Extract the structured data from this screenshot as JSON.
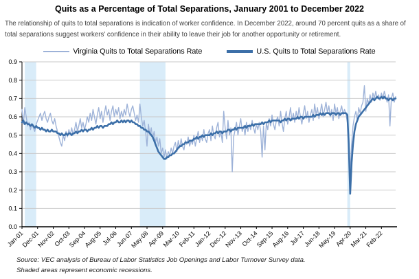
{
  "title": "Quits as a Percentage of Total Separations, January 2001 to December 2022",
  "subtitle": "The relationship of quits to total separations is indication of worker confidence. In December 2022, around 70 percent quits as a share of total separations suggest workers' confidence in their ability to leave their job for another opportunity or retirement.",
  "footer": {
    "source": "Source: VEC analysis of Bureau of Labor Statistics Job Openings and Labor Turnover Survey data.",
    "note": "Shaded areas represent economic recessions."
  },
  "chart_data": {
    "type": "line",
    "x_start": "Jan-2001",
    "x_end": "Dec-2022",
    "x_frequency": "monthly",
    "x_tick_interval": 11,
    "x_tick_labels": [
      "Jan-01",
      "Dec-01",
      "Nov-02",
      "Oct-03",
      "Sep-04",
      "Aug-05",
      "Jul-06",
      "Jun-07",
      "May-08",
      "Apr-09",
      "Mar-10",
      "Feb-11",
      "Jan-12",
      "Dec-12",
      "Nov-13",
      "Oct-14",
      "Sep-15",
      "Aug-16",
      "Jul-17",
      "Jun-18",
      "May-19",
      "Apr-20",
      "Mar-21",
      "Feb-22"
    ],
    "ylim": [
      0.0,
      0.9
    ],
    "yticks": [
      0.0,
      0.1,
      0.2,
      0.3,
      0.4,
      0.5,
      0.6,
      0.7,
      0.8,
      0.9
    ],
    "grid": "horizontal",
    "legend_position": "top",
    "colors": {
      "band": "#D9ECF9",
      "grid": "#C9C9C9",
      "axis": "#000000"
    },
    "recession_bands": [
      {
        "label": "2001 recession",
        "start_month": "Mar-01",
        "end_month": "Nov-01",
        "start_index": 2,
        "end_index": 10
      },
      {
        "label": "2008-09 recession",
        "start_month": "Dec-07",
        "end_month": "Jun-09",
        "start_index": 83,
        "end_index": 101
      },
      {
        "label": "COVID-19 recession",
        "start_month": "Feb-20",
        "end_month": "Apr-20",
        "start_index": 229,
        "end_index": 231
      }
    ],
    "series": [
      {
        "name": "Virginia Quits to Total Separations Rate",
        "color": "#9DB2D8",
        "stroke_width": 1.4,
        "values": [
          0.64,
          0.56,
          0.65,
          0.6,
          0.55,
          0.57,
          0.53,
          0.56,
          0.54,
          0.52,
          0.56,
          0.58,
          0.6,
          0.62,
          0.58,
          0.61,
          0.63,
          0.59,
          0.57,
          0.6,
          0.62,
          0.58,
          0.56,
          0.59,
          0.55,
          0.52,
          0.49,
          0.46,
          0.44,
          0.5,
          0.47,
          0.52,
          0.49,
          0.53,
          0.5,
          0.54,
          0.5,
          0.53,
          0.57,
          0.52,
          0.55,
          0.59,
          0.54,
          0.57,
          0.53,
          0.56,
          0.6,
          0.57,
          0.62,
          0.58,
          0.64,
          0.6,
          0.56,
          0.61,
          0.65,
          0.59,
          0.63,
          0.57,
          0.62,
          0.66,
          0.61,
          0.64,
          0.58,
          0.63,
          0.66,
          0.6,
          0.64,
          0.61,
          0.65,
          0.59,
          0.63,
          0.6,
          0.64,
          0.61,
          0.67,
          0.63,
          0.6,
          0.64,
          0.66,
          0.62,
          0.58,
          0.61,
          0.57,
          0.67,
          0.6,
          0.55,
          0.58,
          0.52,
          0.44,
          0.56,
          0.5,
          0.54,
          0.48,
          0.52,
          0.46,
          0.49,
          0.44,
          0.48,
          0.4,
          0.43,
          0.38,
          0.42,
          0.37,
          0.41,
          0.39,
          0.43,
          0.4,
          0.44,
          0.46,
          0.41,
          0.47,
          0.43,
          0.48,
          0.44,
          0.42,
          0.47,
          0.45,
          0.49,
          0.44,
          0.47,
          0.45,
          0.5,
          0.44,
          0.48,
          0.52,
          0.46,
          0.5,
          0.47,
          0.53,
          0.48,
          0.46,
          0.51,
          0.53,
          0.47,
          0.55,
          0.5,
          0.48,
          0.54,
          0.57,
          0.49,
          0.52,
          0.46,
          0.63,
          0.54,
          0.48,
          0.58,
          0.5,
          0.54,
          0.3,
          0.49,
          0.53,
          0.57,
          0.5,
          0.55,
          0.59,
          0.52,
          0.55,
          0.5,
          0.57,
          0.52,
          0.56,
          0.53,
          0.58,
          0.54,
          0.51,
          0.56,
          0.53,
          0.57,
          0.52,
          0.38,
          0.55,
          0.42,
          0.57,
          0.53,
          0.59,
          0.55,
          0.61,
          0.56,
          0.53,
          0.58,
          0.6,
          0.55,
          0.63,
          0.57,
          0.52,
          0.59,
          0.63,
          0.56,
          0.6,
          0.65,
          0.58,
          0.62,
          0.57,
          0.63,
          0.59,
          0.65,
          0.6,
          0.56,
          0.62,
          0.66,
          0.59,
          0.63,
          0.57,
          0.61,
          0.64,
          0.58,
          0.67,
          0.61,
          0.65,
          0.59,
          0.63,
          0.67,
          0.6,
          0.64,
          0.68,
          0.62,
          0.66,
          0.6,
          0.64,
          0.58,
          0.67,
          0.62,
          0.65,
          0.59,
          0.63,
          0.66,
          0.61,
          0.64,
          0.62,
          0.57,
          0.5,
          0.3,
          0.45,
          0.55,
          0.6,
          0.63,
          0.58,
          0.65,
          0.62,
          0.66,
          0.68,
          0.77,
          0.63,
          0.7,
          0.67,
          0.72,
          0.68,
          0.73,
          0.7,
          0.74,
          0.7,
          0.72,
          0.69,
          0.73,
          0.7,
          0.74,
          0.71,
          0.68,
          0.72,
          0.55,
          0.7,
          0.73,
          0.68,
          0.71
        ]
      },
      {
        "name": "U.S. Quits to Total Separations Rate",
        "color": "#3C6FA8",
        "stroke_width": 2.6,
        "values": [
          0.57,
          0.58,
          0.56,
          0.57,
          0.56,
          0.56,
          0.55,
          0.56,
          0.55,
          0.54,
          0.55,
          0.54,
          0.54,
          0.53,
          0.54,
          0.53,
          0.53,
          0.52,
          0.53,
          0.52,
          0.52,
          0.53,
          0.52,
          0.52,
          0.52,
          0.51,
          0.51,
          0.5,
          0.51,
          0.5,
          0.5,
          0.51,
          0.5,
          0.51,
          0.51,
          0.5,
          0.51,
          0.51,
          0.52,
          0.51,
          0.52,
          0.52,
          0.53,
          0.52,
          0.53,
          0.53,
          0.52,
          0.53,
          0.53,
          0.54,
          0.53,
          0.54,
          0.54,
          0.55,
          0.54,
          0.55,
          0.55,
          0.54,
          0.55,
          0.55,
          0.55,
          0.56,
          0.56,
          0.57,
          0.56,
          0.57,
          0.57,
          0.58,
          0.57,
          0.57,
          0.58,
          0.57,
          0.58,
          0.57,
          0.58,
          0.58,
          0.57,
          0.58,
          0.57,
          0.57,
          0.56,
          0.56,
          0.55,
          0.55,
          0.54,
          0.54,
          0.53,
          0.53,
          0.52,
          0.52,
          0.51,
          0.5,
          0.49,
          0.47,
          0.45,
          0.43,
          0.41,
          0.4,
          0.39,
          0.38,
          0.37,
          0.37,
          0.38,
          0.38,
          0.39,
          0.39,
          0.4,
          0.4,
          0.41,
          0.42,
          0.43,
          0.44,
          0.44,
          0.45,
          0.45,
          0.46,
          0.46,
          0.46,
          0.47,
          0.47,
          0.47,
          0.48,
          0.48,
          0.49,
          0.48,
          0.49,
          0.49,
          0.5,
          0.49,
          0.5,
          0.5,
          0.5,
          0.5,
          0.51,
          0.5,
          0.51,
          0.51,
          0.52,
          0.51,
          0.52,
          0.52,
          0.51,
          0.52,
          0.52,
          0.52,
          0.53,
          0.53,
          0.52,
          0.53,
          0.53,
          0.54,
          0.53,
          0.54,
          0.54,
          0.54,
          0.54,
          0.54,
          0.55,
          0.54,
          0.55,
          0.55,
          0.55,
          0.56,
          0.55,
          0.56,
          0.56,
          0.56,
          0.56,
          0.56,
          0.57,
          0.56,
          0.57,
          0.57,
          0.57,
          0.58,
          0.57,
          0.58,
          0.58,
          0.58,
          0.58,
          0.58,
          0.58,
          0.57,
          0.58,
          0.58,
          0.59,
          0.58,
          0.59,
          0.59,
          0.58,
          0.59,
          0.59,
          0.59,
          0.59,
          0.6,
          0.59,
          0.6,
          0.6,
          0.59,
          0.6,
          0.6,
          0.6,
          0.6,
          0.6,
          0.6,
          0.61,
          0.6,
          0.61,
          0.61,
          0.61,
          0.62,
          0.61,
          0.62,
          0.61,
          0.62,
          0.62,
          0.62,
          0.61,
          0.62,
          0.62,
          0.62,
          0.61,
          0.62,
          0.62,
          0.61,
          0.62,
          0.62,
          0.62,
          0.62,
          0.61,
          0.45,
          0.18,
          0.35,
          0.45,
          0.52,
          0.56,
          0.58,
          0.6,
          0.61,
          0.62,
          0.63,
          0.64,
          0.65,
          0.66,
          0.67,
          0.68,
          0.69,
          0.7,
          0.69,
          0.7,
          0.71,
          0.7,
          0.7,
          0.71,
          0.7,
          0.71,
          0.7,
          0.7,
          0.69,
          0.7,
          0.7,
          0.69,
          0.7,
          0.7
        ]
      }
    ]
  }
}
